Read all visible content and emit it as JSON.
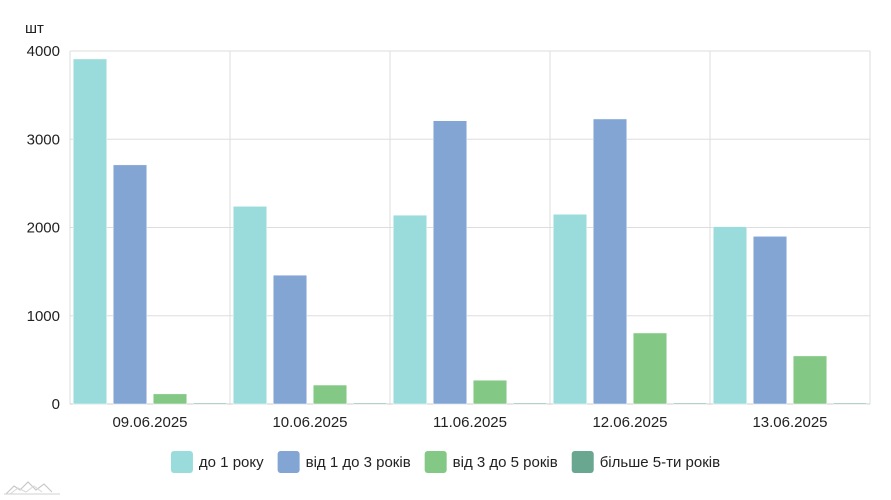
{
  "chart_data": {
    "type": "bar",
    "ylabel": "шт",
    "ylim": [
      0,
      4000
    ],
    "y_ticks": [
      0,
      1000,
      2000,
      3000,
      4000
    ],
    "grid": true,
    "legend_position": "bottom",
    "categories": [
      "09.06.2025",
      "10.06.2025",
      "11.06.2025",
      "12.06.2025",
      "13.06.2025"
    ],
    "series": [
      {
        "name": "до 1 року",
        "color": "#9adcdc",
        "values": [
          3910,
          2240,
          2140,
          2150,
          2010
        ]
      },
      {
        "name": "від 1 до 3 років",
        "color": "#82a5d4",
        "values": [
          2710,
          1460,
          3210,
          3230,
          1900
        ]
      },
      {
        "name": "від 3 до 5 років",
        "color": "#84c886",
        "values": [
          115,
          215,
          270,
          805,
          545
        ]
      },
      {
        "name": "більше 5-ти років",
        "color": "#6aa790",
        "values": [
          8,
          8,
          8,
          8,
          8
        ]
      }
    ]
  }
}
